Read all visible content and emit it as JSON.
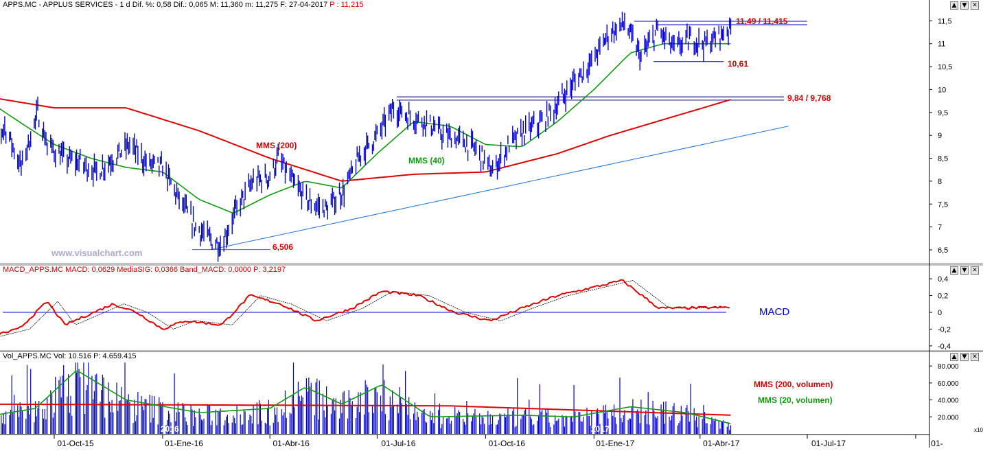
{
  "colors": {
    "price": "#0000cc",
    "ma_long": "#dd0000",
    "ma_short": "#119911",
    "macd_line": "#dd0000",
    "macd_signal": "#000000",
    "volume_bar": "#0000cc",
    "trendline": "#1e6fd0",
    "annotation_red": "#cc0000",
    "annotation_green": "#119911",
    "annotation_blue": "#0000cc",
    "watermark": "#aaaacc",
    "axis_text": "#000000",
    "background": "#ffffff"
  },
  "price_panel": {
    "header": {
      "main": "APPS.MC - APPLUS SERVICES - 1 d Dif. %: 0,58 Dif.: 0,065 M: 11,360 m: 11,275 F: 27-04-2017",
      "last": "P : 11,215"
    },
    "watermark": "www.visualchart.com",
    "y_ticks": [
      "11,5",
      "11",
      "10,5",
      "10",
      "9,5",
      "9",
      "8,5",
      "8",
      "7,5",
      "7",
      "6,5"
    ],
    "annotations": {
      "resistance_top": "11,49 / 11,415",
      "support_top": "10,61",
      "resistance_mid": "9,84 / 9,768",
      "low": "6,506",
      "mms200": "MMS (200)",
      "mms40": "MMS (40)"
    }
  },
  "macd_panel": {
    "header": "MACD_APPS.MC MACD: 0,0629 MediaSIG: 0,0366 Band_MACD: 0,0000 P: 3,2197",
    "y_ticks": [
      "0,4",
      "0,2",
      "0",
      "-0,2",
      "-0,4"
    ],
    "label": "MACD"
  },
  "volume_panel": {
    "header": "Vol_APPS.MC Vol: 10.516 P: 4.659.415",
    "y_ticks": [
      "80.000",
      "60.000",
      "40.000",
      "20.000"
    ],
    "multiplier": "x10",
    "legend_ma200": "MMS (200, volumen)",
    "legend_ma20": "MMS (20, volumen)",
    "year_labels": [
      "2016",
      "2017"
    ]
  },
  "x_axis": {
    "labels": [
      "01-Oct-15",
      "01-Ene-16",
      "01-Abr-16",
      "01-Jul-16",
      "01-Oct-16",
      "01-Ene-17",
      "01-Abr-17",
      "01-Jul-17",
      "01-"
    ]
  },
  "chart_data": {
    "type": "line",
    "title": "APPS.MC - APPLUS SERVICES - 1 d",
    "price_series": {
      "name": "APPS.MC",
      "points": [
        {
          "date": "2015-08-03",
          "v": 8.5
        },
        {
          "date": "2015-08-20",
          "v": 9.2
        },
        {
          "date": "2015-09-03",
          "v": 8.3
        },
        {
          "date": "2015-09-17",
          "v": 9.5
        },
        {
          "date": "2015-09-25",
          "v": 8.8
        },
        {
          "date": "2015-10-09",
          "v": 8.5
        },
        {
          "date": "2015-10-23",
          "v": 8.4
        },
        {
          "date": "2015-11-06",
          "v": 8.2
        },
        {
          "date": "2015-11-20",
          "v": 8.5
        },
        {
          "date": "2015-12-04",
          "v": 8.8
        },
        {
          "date": "2015-12-18",
          "v": 8.4
        },
        {
          "date": "2016-01-01",
          "v": 8.3
        },
        {
          "date": "2016-01-15",
          "v": 7.6
        },
        {
          "date": "2016-01-29",
          "v": 7.0
        },
        {
          "date": "2016-02-12",
          "v": 6.7
        },
        {
          "date": "2016-02-20",
          "v": 6.6
        },
        {
          "date": "2016-03-04",
          "v": 7.4
        },
        {
          "date": "2016-03-18",
          "v": 8.0
        },
        {
          "date": "2016-04-01",
          "v": 8.1
        },
        {
          "date": "2016-04-08",
          "v": 8.5
        },
        {
          "date": "2016-04-22",
          "v": 7.9
        },
        {
          "date": "2016-05-06",
          "v": 7.5
        },
        {
          "date": "2016-05-20",
          "v": 7.4
        },
        {
          "date": "2016-06-03",
          "v": 7.8
        },
        {
          "date": "2016-06-17",
          "v": 8.6
        },
        {
          "date": "2016-07-01",
          "v": 9.0
        },
        {
          "date": "2016-07-15",
          "v": 9.6
        },
        {
          "date": "2016-07-29",
          "v": 9.4
        },
        {
          "date": "2016-08-12",
          "v": 9.3
        },
        {
          "date": "2016-08-26",
          "v": 9.0
        },
        {
          "date": "2016-09-09",
          "v": 8.9
        },
        {
          "date": "2016-09-23",
          "v": 8.7
        },
        {
          "date": "2016-10-07",
          "v": 8.2
        },
        {
          "date": "2016-10-21",
          "v": 8.8
        },
        {
          "date": "2016-11-04",
          "v": 9.1
        },
        {
          "date": "2016-11-18",
          "v": 9.3
        },
        {
          "date": "2016-12-02",
          "v": 9.7
        },
        {
          "date": "2016-12-16",
          "v": 10.2
        },
        {
          "date": "2016-12-30",
          "v": 10.6
        },
        {
          "date": "2017-01-13",
          "v": 11.2
        },
        {
          "date": "2017-01-27",
          "v": 11.45
        },
        {
          "date": "2017-02-10",
          "v": 10.7
        },
        {
          "date": "2017-02-24",
          "v": 11.3
        },
        {
          "date": "2017-03-10",
          "v": 10.9
        },
        {
          "date": "2017-03-24",
          "v": 11.1
        },
        {
          "date": "2017-04-07",
          "v": 11.0
        },
        {
          "date": "2017-04-27",
          "v": 11.35
        }
      ]
    },
    "ma200": {
      "name": "MMS (200)",
      "points": [
        {
          "date": "2015-08-03",
          "v": 9.85
        },
        {
          "date": "2015-10-01",
          "v": 9.6
        },
        {
          "date": "2015-12-01",
          "v": 9.6
        },
        {
          "date": "2016-02-01",
          "v": 9.1
        },
        {
          "date": "2016-04-01",
          "v": 8.5
        },
        {
          "date": "2016-06-01",
          "v": 8.0
        },
        {
          "date": "2016-08-01",
          "v": 8.15
        },
        {
          "date": "2016-10-01",
          "v": 8.2
        },
        {
          "date": "2016-12-01",
          "v": 8.6
        },
        {
          "date": "2017-01-15",
          "v": 9.0
        },
        {
          "date": "2017-04-27",
          "v": 9.78
        }
      ]
    },
    "ma40": {
      "name": "MMS (40)",
      "points": [
        {
          "date": "2015-08-03",
          "v": 9.8
        },
        {
          "date": "2015-09-01",
          "v": 9.3
        },
        {
          "date": "2015-10-01",
          "v": 8.8
        },
        {
          "date": "2015-11-01",
          "v": 8.5
        },
        {
          "date": "2015-12-01",
          "v": 8.3
        },
        {
          "date": "2016-01-01",
          "v": 8.2
        },
        {
          "date": "2016-02-01",
          "v": 7.6
        },
        {
          "date": "2016-03-01",
          "v": 7.3
        },
        {
          "date": "2016-04-01",
          "v": 7.7
        },
        {
          "date": "2016-05-01",
          "v": 8.0
        },
        {
          "date": "2016-06-01",
          "v": 7.85
        },
        {
          "date": "2016-07-01",
          "v": 8.6
        },
        {
          "date": "2016-08-01",
          "v": 9.3
        },
        {
          "date": "2016-09-01",
          "v": 9.2
        },
        {
          "date": "2016-10-01",
          "v": 8.8
        },
        {
          "date": "2016-11-01",
          "v": 8.75
        },
        {
          "date": "2016-12-01",
          "v": 9.3
        },
        {
          "date": "2017-01-01",
          "v": 10.0
        },
        {
          "date": "2017-02-01",
          "v": 10.8
        },
        {
          "date": "2017-03-01",
          "v": 11.0
        },
        {
          "date": "2017-04-27",
          "v": 11.0
        }
      ]
    },
    "levels": [
      {
        "label": "11,49 / 11,415",
        "values": [
          11.49,
          11.415
        ]
      },
      {
        "label": "10,61",
        "values": [
          10.61
        ]
      },
      {
        "label": "9,84 / 9,768",
        "values": [
          9.84,
          9.768
        ]
      },
      {
        "label": "6,506",
        "values": [
          6.506
        ]
      }
    ],
    "trendline": [
      {
        "date": "2016-02-11",
        "v": 6.506
      },
      {
        "date": "2017-06-15",
        "v": 9.2
      }
    ],
    "macd": {
      "points": [
        {
          "date": "2015-08-03",
          "v": -0.3
        },
        {
          "date": "2015-09-01",
          "v": -0.2
        },
        {
          "date": "2015-09-25",
          "v": 0.13
        },
        {
          "date": "2015-10-10",
          "v": -0.15
        },
        {
          "date": "2015-11-20",
          "v": 0.1
        },
        {
          "date": "2015-12-10",
          "v": 0.0
        },
        {
          "date": "2016-01-01",
          "v": -0.2
        },
        {
          "date": "2016-01-20",
          "v": -0.1
        },
        {
          "date": "2016-02-20",
          "v": -0.15
        },
        {
          "date": "2016-03-15",
          "v": 0.2
        },
        {
          "date": "2016-04-10",
          "v": 0.1
        },
        {
          "date": "2016-05-10",
          "v": -0.1
        },
        {
          "date": "2016-06-10",
          "v": 0.05
        },
        {
          "date": "2016-07-05",
          "v": 0.25
        },
        {
          "date": "2016-08-05",
          "v": 0.2
        },
        {
          "date": "2016-09-05",
          "v": 0.0
        },
        {
          "date": "2016-10-05",
          "v": -0.1
        },
        {
          "date": "2016-11-01",
          "v": 0.05
        },
        {
          "date": "2016-12-01",
          "v": 0.2
        },
        {
          "date": "2017-01-01",
          "v": 0.3
        },
        {
          "date": "2017-01-25",
          "v": 0.38
        },
        {
          "date": "2017-02-25",
          "v": 0.05
        },
        {
          "date": "2017-03-15",
          "v": 0.05
        },
        {
          "date": "2017-04-27",
          "v": 0.06
        }
      ]
    },
    "volume": {
      "ma200_level": 35000,
      "ma20_points": [
        {
          "date": "2015-08-03",
          "v": 20000
        },
        {
          "date": "2015-09-15",
          "v": 30000
        },
        {
          "date": "2015-10-20",
          "v": 75000
        },
        {
          "date": "2015-12-01",
          "v": 40000
        },
        {
          "date": "2016-02-01",
          "v": 25000
        },
        {
          "date": "2016-04-01",
          "v": 30000
        },
        {
          "date": "2016-05-01",
          "v": 55000
        },
        {
          "date": "2016-06-01",
          "v": 35000
        },
        {
          "date": "2016-07-05",
          "v": 58000
        },
        {
          "date": "2016-08-15",
          "v": 20000
        },
        {
          "date": "2016-11-01",
          "v": 22000
        },
        {
          "date": "2016-12-15",
          "v": 20000
        },
        {
          "date": "2017-02-01",
          "v": 32000
        },
        {
          "date": "2017-03-20",
          "v": 25000
        },
        {
          "date": "2017-04-27",
          "v": 12000
        }
      ]
    },
    "y_range_price": [
      6.2,
      11.7
    ],
    "y_range_macd": [
      -0.45,
      0.45
    ],
    "y_range_volume": [
      0,
      85000
    ],
    "x_range": [
      "2015-08-03",
      "2017-10-06"
    ],
    "grid": false
  }
}
